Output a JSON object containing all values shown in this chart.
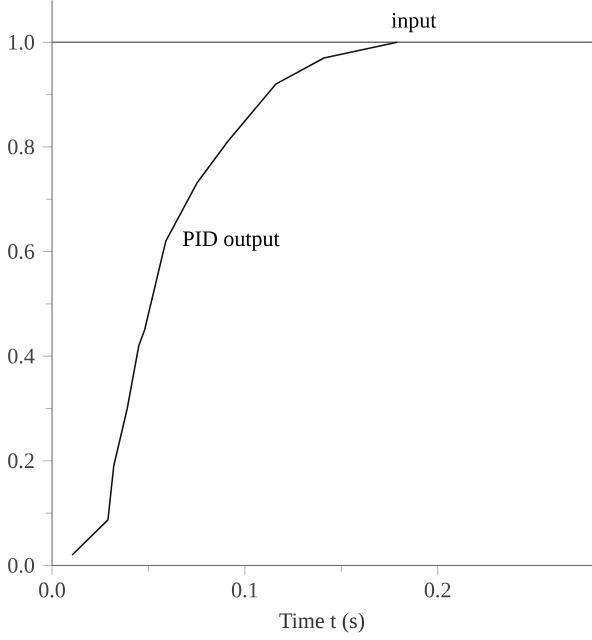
{
  "chart_data": {
    "type": "line",
    "xlabel": "Time t (s)",
    "xlim": [
      0,
      0.28
    ],
    "ylim": [
      0,
      1.08
    ],
    "xticks": [
      {
        "value": 0,
        "label": "0.0"
      },
      0.1,
      0.2
    ],
    "yticks": [
      {
        "value": 0,
        "label": "0.0"
      },
      0.2,
      0.4,
      0.6,
      0.8,
      {
        "value": 1,
        "label": "1.0"
      }
    ],
    "grid": false,
    "legend": false,
    "marker": "none",
    "line_style": "solid",
    "series": [
      {
        "name": "input",
        "color": "#707070",
        "x": [
          0.0,
          0.28
        ],
        "values": [
          1.0,
          1.0
        ]
      },
      {
        "name": "PID output",
        "color": "#111111",
        "x": [
          0.0104,
          0.029,
          0.032,
          0.039,
          0.045,
          0.048,
          0.059,
          0.075,
          0.091,
          0.116,
          0.141,
          0.179
        ],
        "values": [
          0.02,
          0.087,
          0.19,
          0.3,
          0.42,
          0.45,
          0.62,
          0.73,
          0.81,
          0.92,
          0.97,
          1.0
        ]
      }
    ]
  }
}
